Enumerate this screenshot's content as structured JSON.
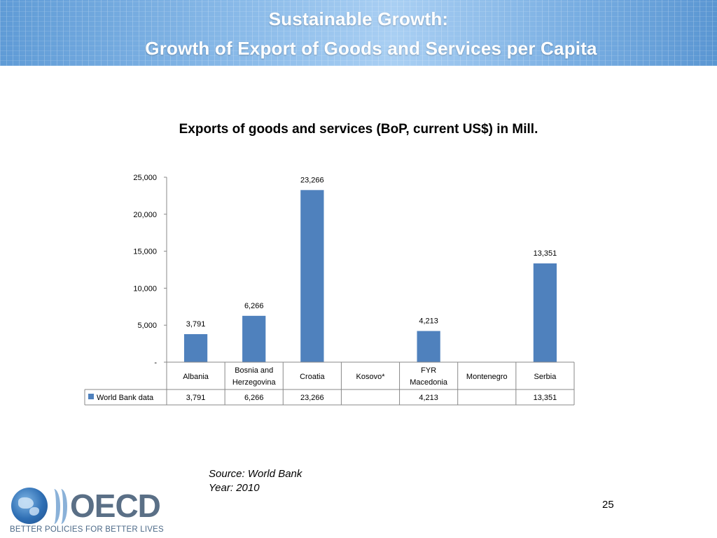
{
  "header": {
    "title_line1": "Sustainable Growth:",
    "title_line2": "Growth of Export of Goods and Services per Capita"
  },
  "chart_data": {
    "type": "bar",
    "title": "Exports of goods and services (BoP, current US$) in Mill.",
    "categories": [
      "Albania",
      "Bosnia and Herzegovina",
      "Croatia",
      "Kosovo*",
      "FYR Macedonia",
      "Montenegro",
      "Serbia"
    ],
    "category_lines": [
      [
        "Albania"
      ],
      [
        "Bosnia and",
        "Herzegovina"
      ],
      [
        "Croatia"
      ],
      [
        "Kosovo*"
      ],
      [
        "FYR",
        "Macedonia"
      ],
      [
        "Montenegro"
      ],
      [
        "Serbia"
      ]
    ],
    "series": [
      {
        "name": "World Bank data",
        "values": [
          3791,
          6266,
          23266,
          null,
          4213,
          null,
          13351
        ],
        "labels": [
          "3,791",
          "6,266",
          "23,266",
          "",
          "4,213",
          "",
          "13,351"
        ],
        "color": "#4f81bd"
      }
    ],
    "ylim": [
      0,
      25000
    ],
    "yticks": [
      0,
      5000,
      10000,
      15000,
      20000,
      25000
    ],
    "ytick_labels": [
      "-",
      "5,000",
      "10,000",
      "15,000",
      "20,000",
      "25,000"
    ],
    "data_table": true,
    "grid": false
  },
  "source": {
    "line1": "Source: World Bank",
    "line2": "Year: 2010"
  },
  "page_number": "25",
  "logo": {
    "wordmark": "OECD",
    "tagline": "BETTER POLICIES FOR BETTER LIVES"
  }
}
